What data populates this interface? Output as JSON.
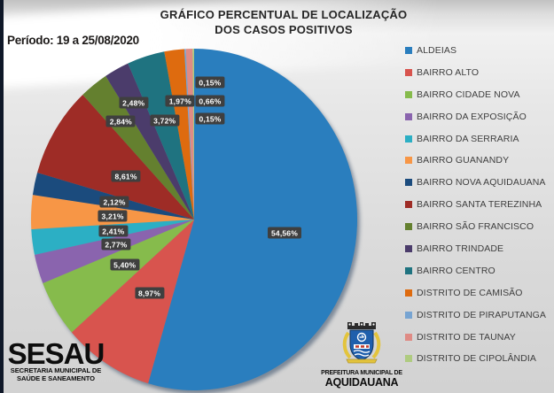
{
  "title": {
    "line1": "GRÁFICO PERCENTUAL DE LOCALIZAÇÃO",
    "line2": "DOS CASOS POSITIVOS"
  },
  "period_label": "Período: 19 a 25/08/2020",
  "chart_data": {
    "type": "pie",
    "title": "GRÁFICO PERCENTUAL DE LOCALIZAÇÃO DOS CASOS POSITIVOS",
    "subtitle": "Período: 19 a 25/08/2020",
    "direction": "clockwise",
    "start_angle_deg": 0,
    "legend_position": "right",
    "value_unit": "%",
    "slices": [
      {
        "label": "ALDEIAS",
        "value": 54.56,
        "display": "54,56%",
        "color": "#2a7ebe",
        "label_r": 0.56
      },
      {
        "label": "BAIRRO ALTO",
        "value": 8.97,
        "display": "8,97%",
        "color": "#d8544e",
        "label_r": 0.51
      },
      {
        "label": "BAIRRO CIDADE NOVA",
        "value": 5.4,
        "display": "5,40%",
        "color": "#86bb4c",
        "label_r": 0.5
      },
      {
        "label": "BAIRRO DA EXPOSIÇÃO",
        "value": 2.77,
        "display": "2,77%",
        "color": "#8a64ae",
        "label_r": 0.5
      },
      {
        "label": "BAIRRO DA SERRARIA",
        "value": 2.41,
        "display": "2,41%",
        "color": "#2cafc4",
        "label_r": 0.5
      },
      {
        "label": "BAIRRO GUANANDY",
        "value": 3.21,
        "display": "3,21%",
        "color": "#f79646",
        "label_r": 0.5
      },
      {
        "label": "BAIRRO NOVA AQUIDAUANA",
        "value": 2.12,
        "display": "2,12%",
        "color": "#1b4b7d",
        "label_r": 0.5
      },
      {
        "label": "BAIRRO SANTA TEREZINHA",
        "value": 8.61,
        "display": "8,61%",
        "color": "#9e2c26",
        "label_r": 0.49
      },
      {
        "label": "BAIRRO SÃO FRANCISCO",
        "value": 2.84,
        "display": "2,84%",
        "color": "#64802f",
        "label_r": 0.73
      },
      {
        "label": "BAIRRO TRINDADE",
        "value": 2.48,
        "display": "2,48%",
        "color": "#4b3c6b",
        "label_r": 0.78
      },
      {
        "label": "BAIRRO CENTRO",
        "value": 3.72,
        "display": "3,72%",
        "color": "#1f7380",
        "label_r": 0.61
      },
      {
        "label": "DISTRITO DE CAMISÃO",
        "value": 1.97,
        "display": "1,97%",
        "color": "#de6b0f",
        "label_r": 0.7
      },
      {
        "label": "DISTRITO DE PIRAPUTANGA",
        "value": 0.15,
        "display": "0,15%",
        "color": "#77a4d2",
        "label_r": 0.81,
        "label_angle": 6.9
      },
      {
        "label": "DISTRITO DE TAUNAY",
        "value": 0.66,
        "display": "0,66%",
        "color": "#df8b85",
        "label_r": 0.7,
        "label_angle": 8.0
      },
      {
        "label": "DISTRITO DE CIPOLÂNDIA",
        "value": 0.15,
        "display": "0,15%",
        "color": "#afcb80",
        "label_r": 0.6,
        "label_angle": 9.4
      }
    ]
  },
  "footer": {
    "sesau": {
      "name": "SESAU",
      "sub1": "SECRETARIA MUNICIPAL DE",
      "sub2": "SAÚDE E SANEAMENTO"
    },
    "prefeitura": {
      "line1": "PREFEITURA MUNICIPAL DE",
      "line2": "AQUIDAUANA"
    }
  },
  "colors": {
    "label_box_bg": "#3f3f3f",
    "label_box_text": "#ffffff",
    "legend_text": "#3e3e3e",
    "accent_bar": "#0f1828",
    "pie_shadow": "rgba(18,44,78,0.45)"
  }
}
